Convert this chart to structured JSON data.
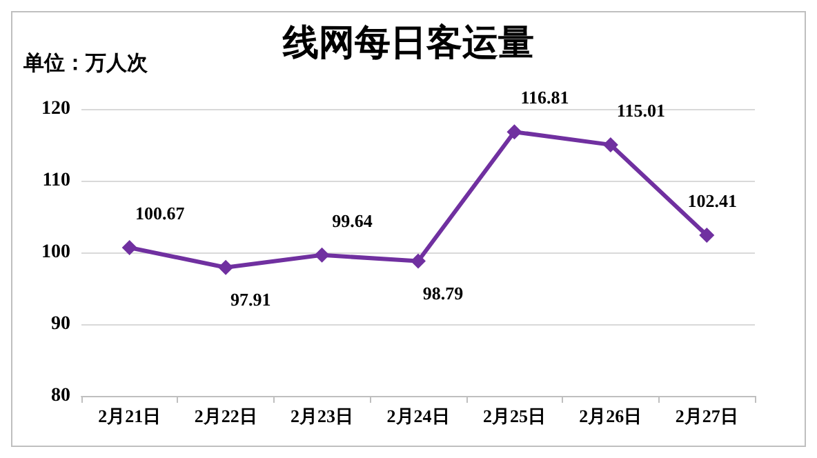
{
  "chart_data": {
    "type": "line",
    "title": "线网每日客运量",
    "annotations": [
      "单位：万人次"
    ],
    "categories": [
      "2月21日",
      "2月22日",
      "2月23日",
      "2月24日",
      "2月25日",
      "2月26日",
      "2月27日"
    ],
    "series": [
      {
        "color": "#7030a0",
        "values": [
          100.67,
          97.91,
          99.64,
          98.79,
          116.81,
          115.01,
          102.41
        ]
      }
    ],
    "ylim": [
      80,
      120
    ],
    "yticks": [
      80,
      90,
      100,
      110,
      120
    ],
    "grid": "y",
    "marker": "diamond",
    "line_style": "solid",
    "data_labels": true
  }
}
